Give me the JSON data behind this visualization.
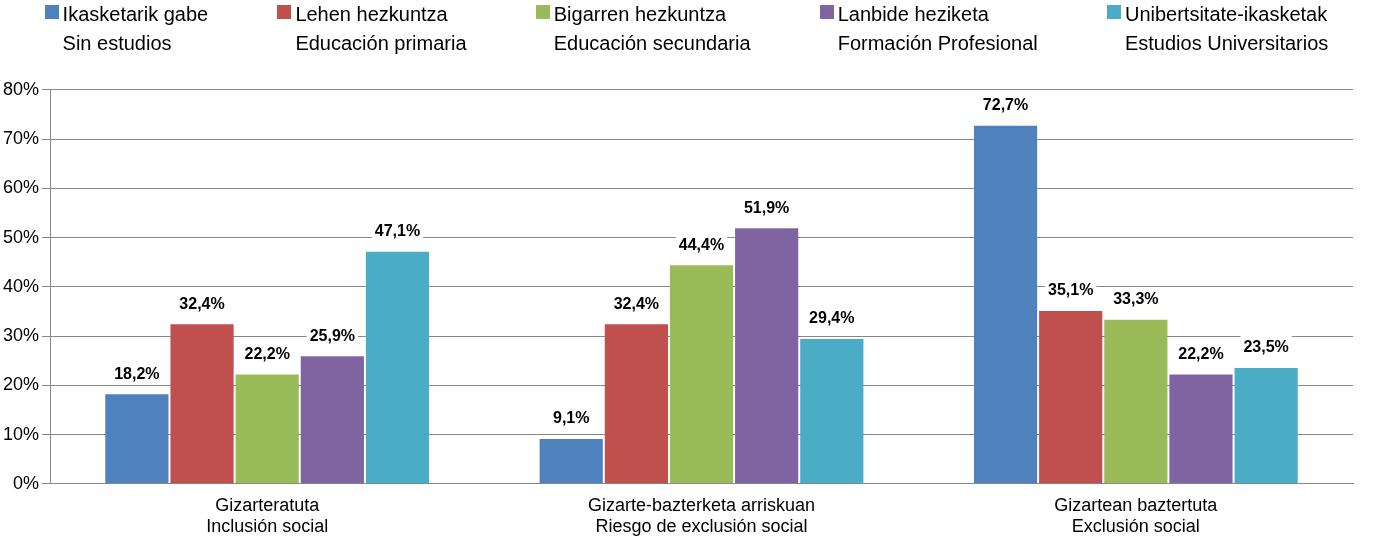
{
  "chart_data": {
    "type": "bar",
    "categories": [
      "Gizarteratuta\nInclusión social",
      "Gizarte-bazterketa arriskuan\nRiesgo de exclusión social",
      "Gizartean baztertuta\nExclusión social"
    ],
    "series": [
      {
        "name": "Ikasketarik gabe\nSin estudios",
        "color": "#4f81bd",
        "values": [
          18.2,
          9.1,
          72.7
        ],
        "value_labels": [
          "18,2%",
          "9,1%",
          "72,7%"
        ]
      },
      {
        "name": "Lehen hezkuntza\nEducación primaria",
        "color": "#c0504d",
        "values": [
          32.4,
          32.4,
          35.1
        ],
        "value_labels": [
          "32,4%",
          "32,4%",
          "35,1%"
        ]
      },
      {
        "name": "Bigarren hezkuntza\nEducación secundaria",
        "color": "#9bbb59",
        "values": [
          22.2,
          44.4,
          33.3
        ],
        "value_labels": [
          "22,2%",
          "44,4%",
          "33,3%"
        ]
      },
      {
        "name": "Lanbide heziketa\nFormación Profesional",
        "color": "#8064a2",
        "values": [
          25.9,
          51.9,
          22.2
        ],
        "value_labels": [
          "25,9%",
          "51,9%",
          "22,2%"
        ]
      },
      {
        "name": "Unibertsitate-ikasketak\nEstudios Universitarios",
        "color": "#4bacc6",
        "values": [
          47.1,
          29.4,
          23.5
        ],
        "value_labels": [
          "47,1%",
          "29,4%",
          "23,5%"
        ]
      }
    ],
    "ylim": [
      0,
      80
    ],
    "yticks": [
      {
        "value": 0,
        "label": "0%"
      },
      {
        "value": 10,
        "label": "10%"
      },
      {
        "value": 20,
        "label": "20%"
      },
      {
        "value": 30,
        "label": "30%"
      },
      {
        "value": 40,
        "label": "40%"
      },
      {
        "value": 50,
        "label": "50%"
      },
      {
        "value": 60,
        "label": "60%"
      },
      {
        "value": 70,
        "label": "70%"
      },
      {
        "value": 80,
        "label": "80%"
      }
    ],
    "grid": "y",
    "legend": "top"
  }
}
